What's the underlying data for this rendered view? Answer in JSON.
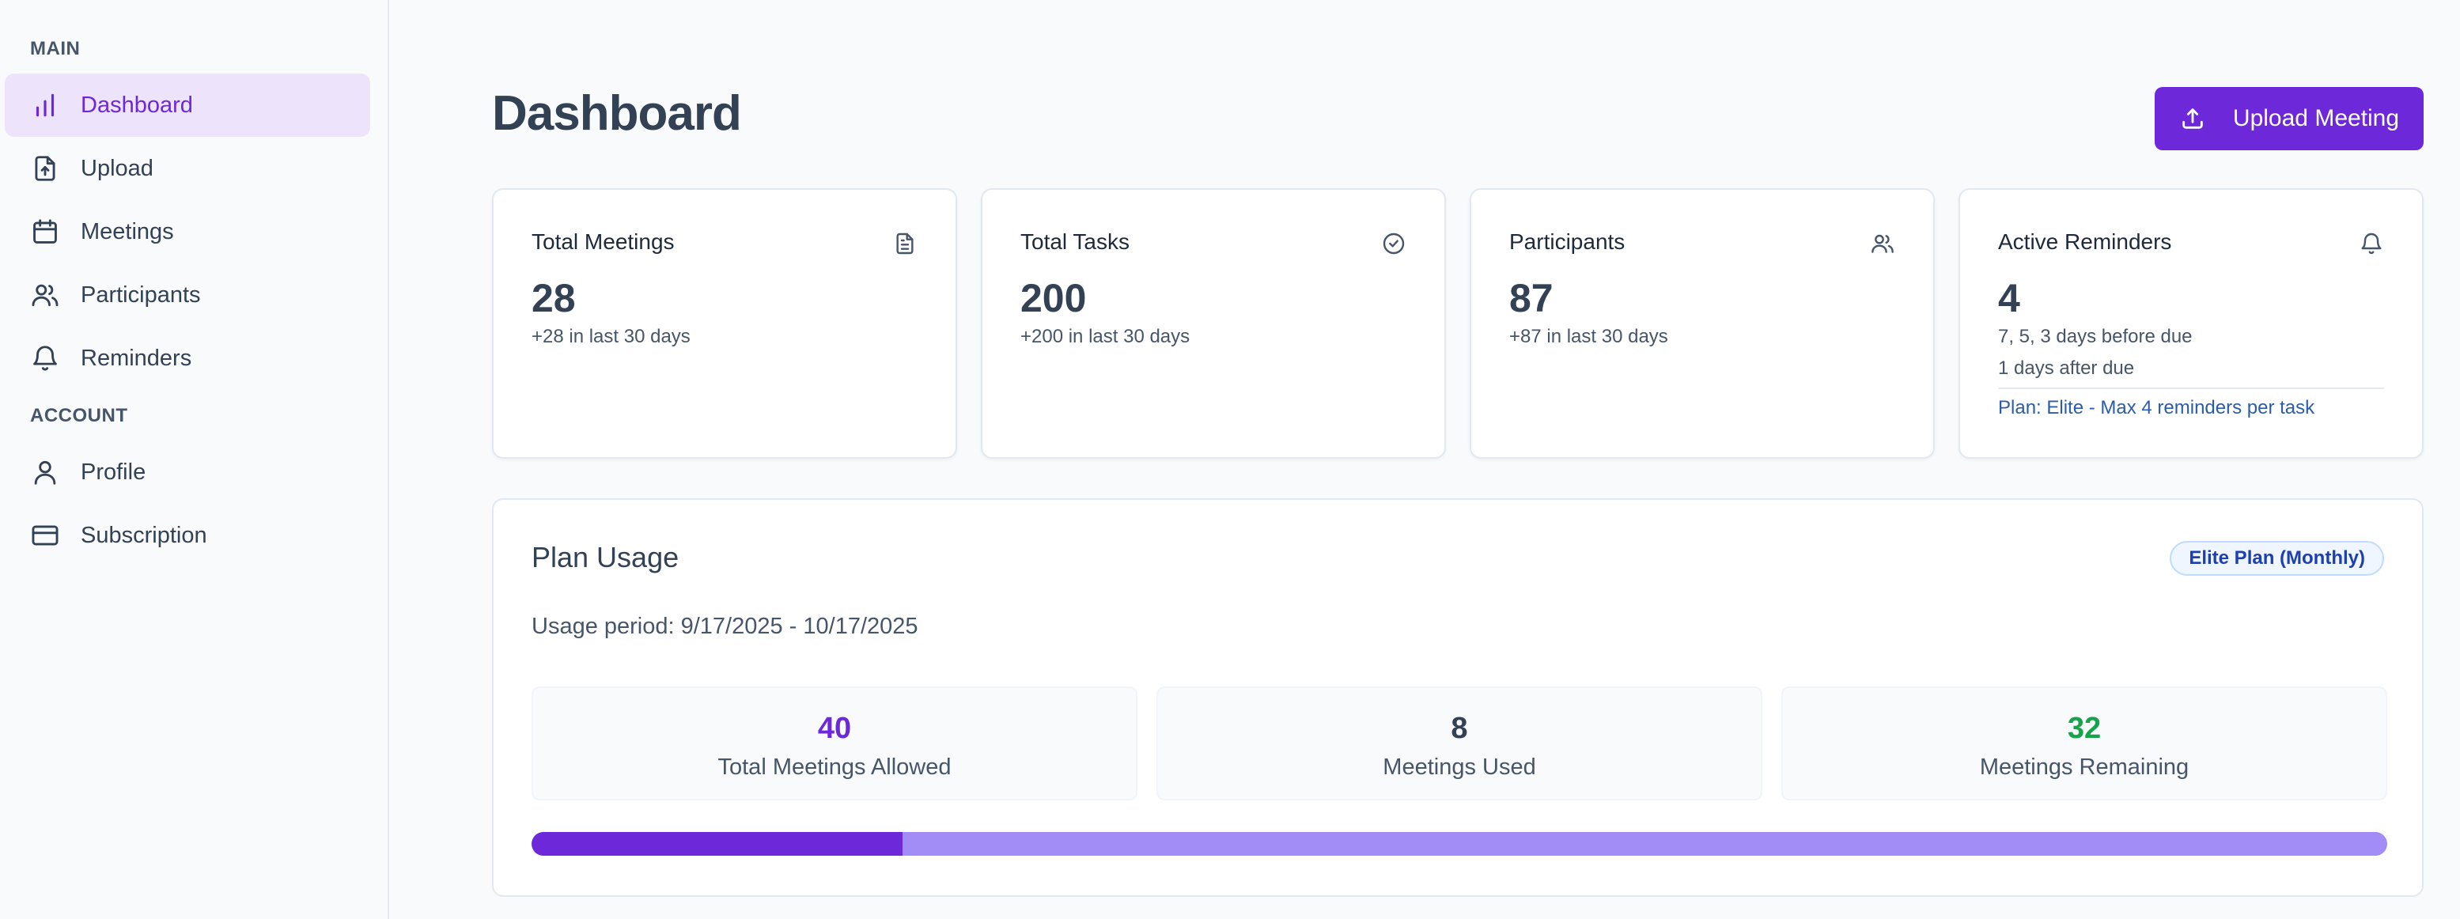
{
  "sidebar": {
    "sections": [
      {
        "label": "MAIN"
      },
      {
        "label": "ACCOUNT"
      }
    ],
    "items": [
      {
        "label": "Dashboard",
        "icon": "bar-chart-icon",
        "active": true
      },
      {
        "label": "Upload",
        "icon": "file-upload-icon"
      },
      {
        "label": "Meetings",
        "icon": "calendar-icon"
      },
      {
        "label": "Participants",
        "icon": "users-icon"
      },
      {
        "label": "Reminders",
        "icon": "bell-icon"
      },
      {
        "label": "Profile",
        "icon": "user-icon"
      },
      {
        "label": "Subscription",
        "icon": "credit-card-icon"
      }
    ]
  },
  "header": {
    "title": "Dashboard",
    "upload_button": "Upload Meeting"
  },
  "stats": [
    {
      "title": "Total Meetings",
      "value": "28",
      "sub": "+28 in last 30 days",
      "icon": "document-icon"
    },
    {
      "title": "Total Tasks",
      "value": "200",
      "sub": "+200 in last 30 days",
      "icon": "check-circle-icon"
    },
    {
      "title": "Participants",
      "value": "87",
      "sub": "+87 in last 30 days",
      "icon": "users-icon"
    },
    {
      "title": "Active Reminders",
      "value": "4",
      "sub": "7, 5, 3 days before due",
      "sub2": "1 days after due",
      "plan": "Plan: Elite - Max 4 reminders per task",
      "icon": "bell-icon"
    }
  ],
  "plan_usage": {
    "title": "Plan Usage",
    "badge": "Elite Plan (Monthly)",
    "period": "Usage period: 9/17/2025 - 10/17/2025",
    "boxes": [
      {
        "value": "40",
        "label": "Total Meetings Allowed",
        "color": "#6d28d9"
      },
      {
        "value": "8",
        "label": "Meetings Used",
        "color": "#334155"
      },
      {
        "value": "32",
        "label": "Meetings Remaining",
        "color": "#16a34a"
      }
    ],
    "progress_fraction": 0.2
  },
  "colors": {
    "accent": "#6d28d9",
    "active_bg": "#ede4fb",
    "success": "#16a34a"
  }
}
